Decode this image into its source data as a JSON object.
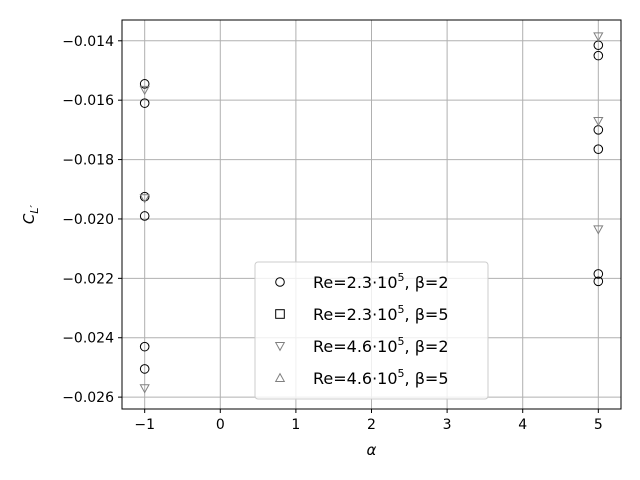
{
  "chart_data": {
    "type": "scatter",
    "xlabel": "α",
    "ylabel": "C_L′",
    "xlim": [
      -1.3,
      5.3
    ],
    "ylim": [
      -0.0264,
      -0.0133
    ],
    "xticks": [
      -1,
      0,
      1,
      2,
      3,
      4,
      5
    ],
    "yticks": [
      -0.026,
      -0.024,
      -0.022,
      -0.02,
      -0.018,
      -0.016,
      -0.014
    ],
    "xtick_labels": [
      "−1",
      "0",
      "1",
      "2",
      "3",
      "4",
      "5"
    ],
    "ytick_labels": [
      "−0.026",
      "−0.024",
      "−0.022",
      "−0.020",
      "−0.018",
      "−0.016",
      "−0.014"
    ],
    "grid": true,
    "legend_position": "lower center",
    "series": [
      {
        "name": "Re=2.3·10⁵, β=2",
        "legend_prefix": "Re=2.3·10",
        "legend_exp": "5",
        "legend_suffix": ", β=2",
        "marker": "circle",
        "color": "#000000",
        "points": [
          [
            -1,
            -0.01545
          ],
          [
            -1,
            -0.0161
          ],
          [
            -1,
            -0.01925
          ],
          [
            -1,
            -0.0199
          ],
          [
            -1,
            -0.0243
          ],
          [
            -1,
            -0.02505
          ],
          [
            5,
            -0.01415
          ],
          [
            5,
            -0.0145
          ],
          [
            5,
            -0.017
          ],
          [
            5,
            -0.01765
          ],
          [
            5,
            -0.02185
          ],
          [
            5,
            -0.0221
          ]
        ]
      },
      {
        "name": "Re=2.3·10⁵, β=5",
        "legend_prefix": "Re=2.3·10",
        "legend_exp": "5",
        "legend_suffix": ", β=5",
        "marker": "square",
        "color": "#000000",
        "points": []
      },
      {
        "name": "Re=4.6·10⁵, β=2",
        "legend_prefix": "Re=4.6·10",
        "legend_exp": "5",
        "legend_suffix": ", β=2",
        "marker": "triangle-down",
        "color": "#808080",
        "points": [
          [
            -1,
            -0.01565
          ],
          [
            -1,
            -0.0193
          ],
          [
            -1,
            -0.0257
          ],
          [
            5,
            -0.01385
          ],
          [
            5,
            -0.0167
          ],
          [
            5,
            -0.02035
          ]
        ]
      },
      {
        "name": "Re=4.6·10⁵, β=5",
        "legend_prefix": "Re=4.6·10",
        "legend_exp": "5",
        "legend_suffix": ", β=5",
        "marker": "triangle-up",
        "color": "#808080",
        "points": []
      }
    ]
  }
}
